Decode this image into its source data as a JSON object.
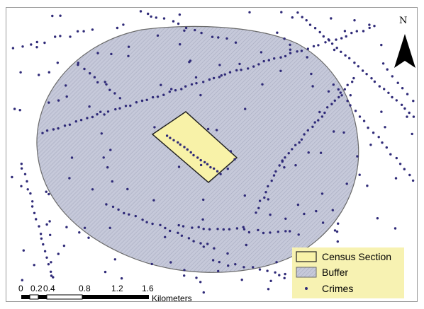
{
  "north_arrow": {
    "label": "N"
  },
  "legend": {
    "items": [
      {
        "label": "Census Section",
        "swatch": "census-section"
      },
      {
        "label": "Buffer",
        "swatch": "buffer"
      },
      {
        "label": "Crimes",
        "swatch": "crimes"
      }
    ]
  },
  "scale_bar": {
    "ticks": [
      "0",
      "0.2",
      "0.4",
      "0.8",
      "1.2",
      "1.6"
    ],
    "unit": "Kilometers"
  },
  "colors": {
    "buffer_fill": "#c6c9da",
    "buffer_hatch": "#a7abc0",
    "census_fill": "#f8f2a8",
    "crime_dot": "#2f2a78",
    "legend_bg": "#f7f2b2"
  }
}
